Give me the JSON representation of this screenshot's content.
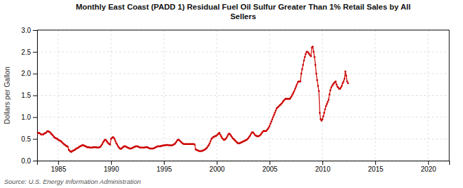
{
  "chart_data": {
    "type": "line",
    "title": "Monthly East Coast (PADD 1) Residual Fuel Oil Sulfur Greater Than 1% Retail Sales by All\nSellers",
    "y_label": "Dollars per Gallon",
    "annotations": [
      "Source: U.S. Energy Information Administration"
    ],
    "color": "#cc0000",
    "marker": "square",
    "grid": true,
    "xlim": [
      1983,
      2022
    ],
    "ylim": [
      0.0,
      3.0
    ],
    "xticks": [
      1985,
      1990,
      1995,
      2000,
      2005,
      2010,
      2015,
      2020
    ],
    "yticks": [
      {
        "value": 0.0,
        "label": "0.0"
      },
      0.5,
      {
        "value": 1.0,
        "label": "1.0"
      },
      1.5,
      {
        "value": 2.0,
        "label": "2.0"
      },
      2.5,
      {
        "value": 3.0,
        "label": "3.0"
      }
    ],
    "x": [
      1983,
      1983.083333,
      1983.166667,
      1983.25,
      1983.333333,
      1983.416667,
      1983.5,
      1983.583333,
      1983.666667,
      1983.75,
      1983.833333,
      1983.916667,
      1984,
      1984.083333,
      1984.166667,
      1984.25,
      1984.333333,
      1984.416667,
      1984.5,
      1984.583333,
      1984.666667,
      1984.75,
      1984.833333,
      1984.916667,
      1985,
      1985.083333,
      1985.166667,
      1985.25,
      1985.333333,
      1985.416667,
      1985.5,
      1985.583333,
      1985.666667,
      1985.75,
      1985.833333,
      1985.916667,
      1986,
      1986.083333,
      1986.166667,
      1986.25,
      1986.333333,
      1986.416667,
      1986.5,
      1986.583333,
      1986.666667,
      1986.75,
      1986.833333,
      1986.916667,
      1987,
      1987.083333,
      1987.166667,
      1987.25,
      1987.333333,
      1987.416667,
      1987.5,
      1987.583333,
      1987.666667,
      1987.75,
      1987.833333,
      1987.916667,
      1988,
      1988.083333,
      1988.166667,
      1988.25,
      1988.333333,
      1988.416667,
      1988.5,
      1988.583333,
      1988.666667,
      1988.75,
      1988.833333,
      1988.916667,
      1989,
      1989.083333,
      1989.166667,
      1989.25,
      1989.333333,
      1989.416667,
      1989.5,
      1989.583333,
      1989.666667,
      1989.75,
      1989.833333,
      1989.916667,
      1990,
      1990.083333,
      1990.166667,
      1990.25,
      1990.333333,
      1990.416667,
      1990.5,
      1990.583333,
      1990.666667,
      1990.75,
      1990.833333,
      1990.916667,
      1991,
      1991.083333,
      1991.166667,
      1991.25,
      1991.333333,
      1991.416667,
      1991.5,
      1991.583333,
      1991.666667,
      1991.75,
      1991.833333,
      1991.916667,
      1992,
      1992.083333,
      1992.166667,
      1992.25,
      1992.333333,
      1992.416667,
      1992.5,
      1992.583333,
      1992.666667,
      1992.75,
      1992.833333,
      1992.916667,
      1993,
      1993.083333,
      1993.166667,
      1993.25,
      1993.333333,
      1993.416667,
      1993.5,
      1993.583333,
      1993.666667,
      1993.75,
      1993.833333,
      1993.916667,
      1994,
      1994.083333,
      1994.166667,
      1994.25,
      1994.333333,
      1994.416667,
      1994.5,
      1994.583333,
      1994.666667,
      1994.75,
      1994.833333,
      1994.916667,
      1995,
      1995.083333,
      1995.166667,
      1995.25,
      1995.333333,
      1995.416667,
      1995.5,
      1995.583333,
      1995.666667,
      1995.75,
      1995.833333,
      1995.916667,
      1996,
      1996.083333,
      1996.166667,
      1996.25,
      1996.333333,
      1996.416667,
      1996.5,
      1996.583333,
      1996.666667,
      1996.75,
      1996.833333,
      1996.916667,
      1997,
      1997.083333,
      1997.166667,
      1997.25,
      1997.333333,
      1997.416667,
      1997.5,
      1997.583333,
      1997.666667,
      1997.75,
      1997.833333,
      1997.916667,
      1998,
      1998.083333,
      1998.166667,
      1998.25,
      1998.333333,
      1998.416667,
      1998.5,
      1998.583333,
      1998.666667,
      1998.75,
      1998.833333,
      1998.916667,
      1999,
      1999.083333,
      1999.166667,
      1999.25,
      1999.333333,
      1999.416667,
      1999.5,
      1999.583333,
      1999.666667,
      1999.75,
      1999.833333,
      1999.916667,
      2000,
      2000.083333,
      2000.166667,
      2000.25,
      2000.333333,
      2000.416667,
      2000.5,
      2000.583333,
      2000.666667,
      2000.75,
      2000.833333,
      2000.916667,
      2001,
      2001.083333,
      2001.166667,
      2001.25,
      2001.333333,
      2001.416667,
      2001.5,
      2001.583333,
      2001.666667,
      2001.75,
      2001.833333,
      2001.916667,
      2002,
      2002.083333,
      2002.166667,
      2002.25,
      2002.333333,
      2002.416667,
      2002.5,
      2002.583333,
      2002.666667,
      2002.75,
      2002.833333,
      2002.916667,
      2003,
      2003.083333,
      2003.166667,
      2003.25,
      2003.333333,
      2003.416667,
      2003.5,
      2003.583333,
      2003.666667,
      2003.75,
      2003.833333,
      2003.916667,
      2004,
      2004.083333,
      2004.166667,
      2004.25,
      2004.333333,
      2004.416667,
      2004.5,
      2004.583333,
      2004.666667,
      2004.75,
      2004.833333,
      2004.916667,
      2005,
      2005.083333,
      2005.166667,
      2005.25,
      2005.333333,
      2005.416667,
      2005.5,
      2005.583333,
      2005.666667,
      2005.75,
      2005.833333,
      2005.916667,
      2006,
      2006.083333,
      2006.166667,
      2006.25,
      2006.333333,
      2006.416667,
      2006.5,
      2006.583333,
      2006.666667,
      2006.75,
      2006.833333,
      2006.916667,
      2007,
      2007.083333,
      2007.166667,
      2007.25,
      2007.333333,
      2007.416667,
      2007.5,
      2007.583333,
      2007.666667,
      2007.75,
      2007.833333,
      2007.916667,
      2008,
      2008.083333,
      2008.166667,
      2008.25,
      2008.333333,
      2008.416667,
      2008.5,
      2008.583333,
      2008.666667,
      2008.75,
      2008.833333,
      2008.916667,
      2009,
      2009.083333,
      2009.166667,
      2009.25,
      2009.333333,
      2009.416667,
      2009.5,
      2009.583333,
      2009.666667,
      2009.75,
      2009.833333,
      2009.916667,
      2010,
      2010.083333,
      2010.166667,
      2010.25,
      2010.333333,
      2010.416667,
      2010.5,
      2010.583333,
      2010.666667,
      2010.75,
      2010.833333,
      2010.916667,
      2011,
      2011.083333,
      2011.166667,
      2011.25,
      2011.333333,
      2011.416667,
      2011.5,
      2011.583333,
      2011.666667,
      2011.75,
      2011.833333,
      2011.916667,
      2012,
      2012.083333,
      2012.166667,
      2012.25,
      2012.333333,
      2012.416667
    ],
    "values": [
      0.62,
      0.63,
      0.64,
      0.63,
      0.61,
      0.6,
      0.6,
      0.6,
      0.62,
      0.63,
      0.64,
      0.66,
      0.68,
      0.67,
      0.66,
      0.65,
      0.62,
      0.6,
      0.58,
      0.55,
      0.53,
      0.52,
      0.51,
      0.5,
      0.48,
      0.47,
      0.46,
      0.45,
      0.43,
      0.41,
      0.39,
      0.37,
      0.36,
      0.34,
      0.33,
      0.32,
      0.25,
      0.23,
      0.21,
      0.2,
      0.22,
      0.23,
      0.24,
      0.25,
      0.27,
      0.28,
      0.29,
      0.3,
      0.32,
      0.33,
      0.34,
      0.35,
      0.36,
      0.35,
      0.34,
      0.33,
      0.32,
      0.31,
      0.31,
      0.31,
      0.3,
      0.3,
      0.3,
      0.3,
      0.31,
      0.31,
      0.31,
      0.31,
      0.3,
      0.3,
      0.3,
      0.31,
      0.32,
      0.35,
      0.38,
      0.42,
      0.45,
      0.48,
      0.48,
      0.45,
      0.42,
      0.4,
      0.38,
      0.37,
      0.5,
      0.52,
      0.54,
      0.53,
      0.5,
      0.45,
      0.4,
      0.37,
      0.33,
      0.3,
      0.28,
      0.27,
      0.28,
      0.3,
      0.32,
      0.33,
      0.33,
      0.32,
      0.31,
      0.3,
      0.29,
      0.28,
      0.28,
      0.28,
      0.29,
      0.3,
      0.31,
      0.32,
      0.33,
      0.33,
      0.33,
      0.32,
      0.31,
      0.3,
      0.3,
      0.3,
      0.3,
      0.3,
      0.3,
      0.31,
      0.31,
      0.31,
      0.3,
      0.29,
      0.28,
      0.28,
      0.28,
      0.28,
      0.28,
      0.29,
      0.3,
      0.31,
      0.32,
      0.33,
      0.33,
      0.33,
      0.33,
      0.34,
      0.34,
      0.35,
      0.35,
      0.35,
      0.36,
      0.36,
      0.36,
      0.36,
      0.35,
      0.35,
      0.35,
      0.35,
      0.36,
      0.37,
      0.38,
      0.4,
      0.43,
      0.46,
      0.48,
      0.48,
      0.46,
      0.44,
      0.42,
      0.4,
      0.39,
      0.38,
      0.38,
      0.38,
      0.38,
      0.38,
      0.38,
      0.38,
      0.38,
      0.38,
      0.38,
      0.38,
      0.38,
      0.37,
      0.26,
      0.25,
      0.24,
      0.23,
      0.22,
      0.22,
      0.22,
      0.22,
      0.23,
      0.24,
      0.25,
      0.26,
      0.28,
      0.3,
      0.33,
      0.36,
      0.4,
      0.45,
      0.5,
      0.52,
      0.54,
      0.55,
      0.56,
      0.57,
      0.58,
      0.6,
      0.62,
      0.64,
      0.6,
      0.56,
      0.52,
      0.5,
      0.48,
      0.48,
      0.5,
      0.52,
      0.56,
      0.6,
      0.62,
      0.61,
      0.58,
      0.55,
      0.52,
      0.5,
      0.48,
      0.46,
      0.44,
      0.42,
      0.4,
      0.4,
      0.4,
      0.41,
      0.42,
      0.43,
      0.44,
      0.45,
      0.46,
      0.47,
      0.48,
      0.5,
      0.52,
      0.55,
      0.58,
      0.62,
      0.65,
      0.65,
      0.63,
      0.6,
      0.58,
      0.57,
      0.56,
      0.56,
      0.57,
      0.58,
      0.6,
      0.63,
      0.66,
      0.68,
      0.68,
      0.68,
      0.68,
      0.7,
      0.73,
      0.76,
      0.8,
      0.85,
      0.9,
      0.95,
      1.0,
      1.05,
      1.1,
      1.15,
      1.2,
      1.22,
      1.24,
      1.26,
      1.28,
      1.3,
      1.32,
      1.35,
      1.38,
      1.4,
      1.42,
      1.42,
      1.42,
      1.42,
      1.42,
      1.42,
      1.45,
      1.48,
      1.52,
      1.56,
      1.6,
      1.65,
      1.7,
      1.75,
      1.8,
      1.82,
      1.82,
      1.82,
      2.0,
      2.1,
      2.2,
      2.3,
      2.38,
      2.45,
      2.5,
      2.5,
      2.48,
      2.45,
      2.42,
      2.4,
      2.6,
      2.62,
      2.5,
      2.38,
      2.2,
      2.0,
      1.85,
      1.72,
      1.6,
      1.1,
      0.95,
      0.92,
      0.95,
      1.02,
      1.1,
      1.18,
      1.25,
      1.3,
      1.35,
      1.4,
      1.52,
      1.62,
      1.68,
      1.72,
      1.75,
      1.78,
      1.8,
      1.82,
      1.75,
      1.7,
      1.68,
      1.65,
      1.65,
      1.68,
      1.72,
      1.78,
      1.82,
      1.88,
      2.05,
      1.95,
      1.82,
      1.78
    ]
  }
}
